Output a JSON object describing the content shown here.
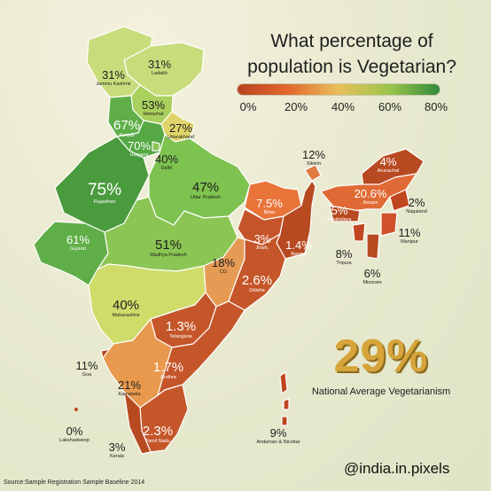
{
  "title": {
    "line1": "What percentage of",
    "line2": "population is Vegetarian?"
  },
  "legend": {
    "ticks": [
      "0%",
      "20%",
      "40%",
      "60%",
      "80%"
    ],
    "colors": [
      "#b8421f",
      "#e2682c",
      "#e9c05a",
      "#9cc54a",
      "#2f8a3a"
    ]
  },
  "regions": [
    {
      "name": "Ladakh",
      "value": "31%"
    },
    {
      "name": "Jammu Kashmir",
      "value": "31%"
    },
    {
      "name": "Himachal",
      "value": "53%"
    },
    {
      "name": "Punjab",
      "value": "67%"
    },
    {
      "name": "Uttarakhand",
      "value": "27%"
    },
    {
      "name": "Haryana",
      "value": "70%"
    },
    {
      "name": "Delhi",
      "value": "40%"
    },
    {
      "name": "Rajasthan",
      "value": "75%"
    },
    {
      "name": "Uttar Pradesh",
      "value": "47%"
    },
    {
      "name": "Gujarat",
      "value": "61%"
    },
    {
      "name": "Madhya Pradesh",
      "value": "51%"
    },
    {
      "name": "Bihar",
      "value": "7.5%"
    },
    {
      "name": "Sikkim",
      "value": "12%"
    },
    {
      "name": "Arunachal",
      "value": "4%"
    },
    {
      "name": "Assam",
      "value": "20.6%"
    },
    {
      "name": "Meghalaya",
      "value": "5%"
    },
    {
      "name": "Nagaland",
      "value": "2%"
    },
    {
      "name": "Manipur",
      "value": "11%"
    },
    {
      "name": "Tripura",
      "value": "8%"
    },
    {
      "name": "Mizoram",
      "value": "6%"
    },
    {
      "name": "Jhark.",
      "value": "3%"
    },
    {
      "name": "Bengal",
      "value": "1.4%"
    },
    {
      "name": "CG",
      "value": "18%"
    },
    {
      "name": "Odisha",
      "value": "2.6%"
    },
    {
      "name": "Maharashtra",
      "value": "40%"
    },
    {
      "name": "Telangana",
      "value": "1.3%"
    },
    {
      "name": "Goa",
      "value": "11%"
    },
    {
      "name": "Karnataka",
      "value": "21%"
    },
    {
      "name": "Andhra",
      "value": "1.7%"
    },
    {
      "name": "Tamil Nadu",
      "value": "2.3%"
    },
    {
      "name": "Kerala",
      "value": "3%"
    },
    {
      "name": "Lakshadweep",
      "value": "0%"
    },
    {
      "name": "Andaman & Nicobar",
      "value": "9%"
    }
  ],
  "national": {
    "value": "29%",
    "caption": "National Average Vegetarianism"
  },
  "handle": "@india.in.pixels",
  "source": "Source:Sample Registration Sample Baseline 2014"
}
